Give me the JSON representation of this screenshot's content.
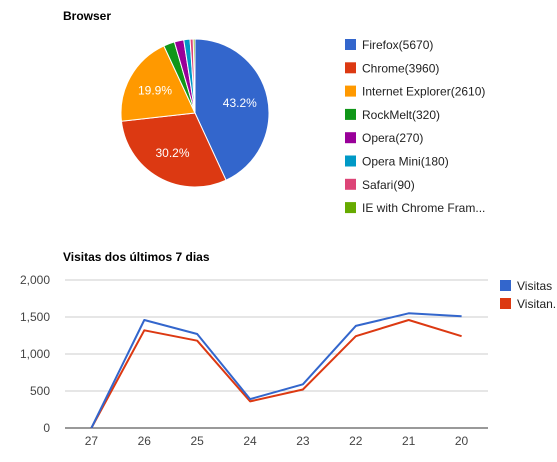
{
  "chart_data": [
    {
      "type": "pie",
      "title": "Browser",
      "legend_position": "right",
      "slices": [
        {
          "label": "Firefox(5670)",
          "value": 5670,
          "percent_label": "43.2%",
          "color": "#3366cc"
        },
        {
          "label": "Chrome(3960)",
          "value": 3960,
          "percent_label": "30.2%",
          "color": "#dc3912"
        },
        {
          "label": "Internet Explorer(2610)",
          "value": 2610,
          "percent_label": "19.9%",
          "color": "#ff9900"
        },
        {
          "label": "RockMelt(320)",
          "value": 320,
          "percent_label": "",
          "color": "#109618"
        },
        {
          "label": "Opera(270)",
          "value": 270,
          "percent_label": "",
          "color": "#990099"
        },
        {
          "label": "Opera Mini(180)",
          "value": 180,
          "percent_label": "",
          "color": "#0099c6"
        },
        {
          "label": "Safari(90)",
          "value": 90,
          "percent_label": "",
          "color": "#dd4477"
        },
        {
          "label": "IE with Chrome Fram...",
          "value": 50,
          "percent_label": "",
          "color": "#66aa00"
        }
      ]
    },
    {
      "type": "line",
      "title": "Visitas dos últimos 7 dias",
      "categories": [
        "27",
        "26",
        "25",
        "24",
        "23",
        "22",
        "21",
        "20"
      ],
      "ylim": [
        0,
        2000
      ],
      "yticks": [
        "0",
        "500",
        "1,000",
        "1,500",
        "2,000"
      ],
      "grid": true,
      "legend_position": "right",
      "series": [
        {
          "name": "Visitas",
          "color": "#3366cc",
          "values": [
            0,
            1460,
            1270,
            390,
            590,
            1380,
            1550,
            1510
          ]
        },
        {
          "name": "Visitan...",
          "color": "#dc3912",
          "values": [
            0,
            1320,
            1180,
            360,
            520,
            1240,
            1460,
            1240
          ]
        }
      ]
    }
  ]
}
